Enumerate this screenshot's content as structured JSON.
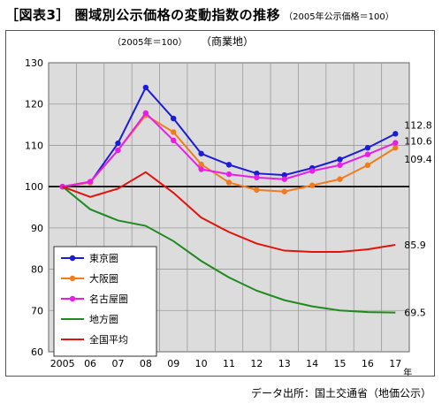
{
  "title": "［図表3］ 圏域別公示価格の変動指数の推移",
  "title_note": "（2005年公示価格＝100）",
  "source": "データ出所：国土交通省（地価公示）",
  "chart_data": {
    "type": "line",
    "subtitle": "（商業地）",
    "index_note": "（2005年＝100）",
    "x_unit": "年",
    "categories": [
      "2005",
      "06",
      "07",
      "08",
      "09",
      "10",
      "11",
      "12",
      "13",
      "14",
      "15",
      "16",
      "17"
    ],
    "ylim": [
      60,
      130
    ],
    "yticks": [
      60,
      70,
      80,
      90,
      100,
      110,
      120,
      130
    ],
    "baseline": 100,
    "grid": true,
    "legend_position": "lower-left",
    "series": [
      {
        "name": "東京圏",
        "color": "#1c1cd6",
        "marker": true,
        "end_label": "112.8",
        "values": [
          100,
          101.0,
          110.5,
          124.0,
          116.5,
          108.0,
          105.3,
          103.2,
          102.8,
          104.5,
          106.6,
          109.4,
          112.8
        ]
      },
      {
        "name": "大阪圏",
        "color": "#f07c1e",
        "marker": true,
        "end_label": "109.4",
        "values": [
          100,
          101.0,
          108.8,
          117.3,
          113.2,
          105.4,
          101.0,
          99.2,
          98.8,
          100.3,
          101.8,
          105.2,
          109.4
        ]
      },
      {
        "name": "名古屋圏",
        "color": "#e81ee8",
        "marker": true,
        "end_label": "110.6",
        "values": [
          100,
          101.2,
          108.8,
          117.8,
          111.2,
          104.2,
          103.0,
          102.2,
          101.8,
          103.8,
          105.2,
          107.8,
          110.6
        ]
      },
      {
        "name": "地方圏",
        "color": "#1f8a1f",
        "marker": false,
        "end_label": "69.5",
        "values": [
          100,
          94.5,
          91.8,
          90.5,
          86.8,
          82.0,
          78.0,
          74.8,
          72.5,
          71.0,
          70.0,
          69.6,
          69.5
        ]
      },
      {
        "name": "全国平均",
        "color": "#e3120b",
        "marker": false,
        "end_label": "85.9",
        "values": [
          100,
          97.5,
          99.5,
          103.5,
          98.5,
          92.5,
          89.0,
          86.2,
          84.5,
          84.2,
          84.2,
          84.8,
          85.9
        ]
      }
    ]
  }
}
